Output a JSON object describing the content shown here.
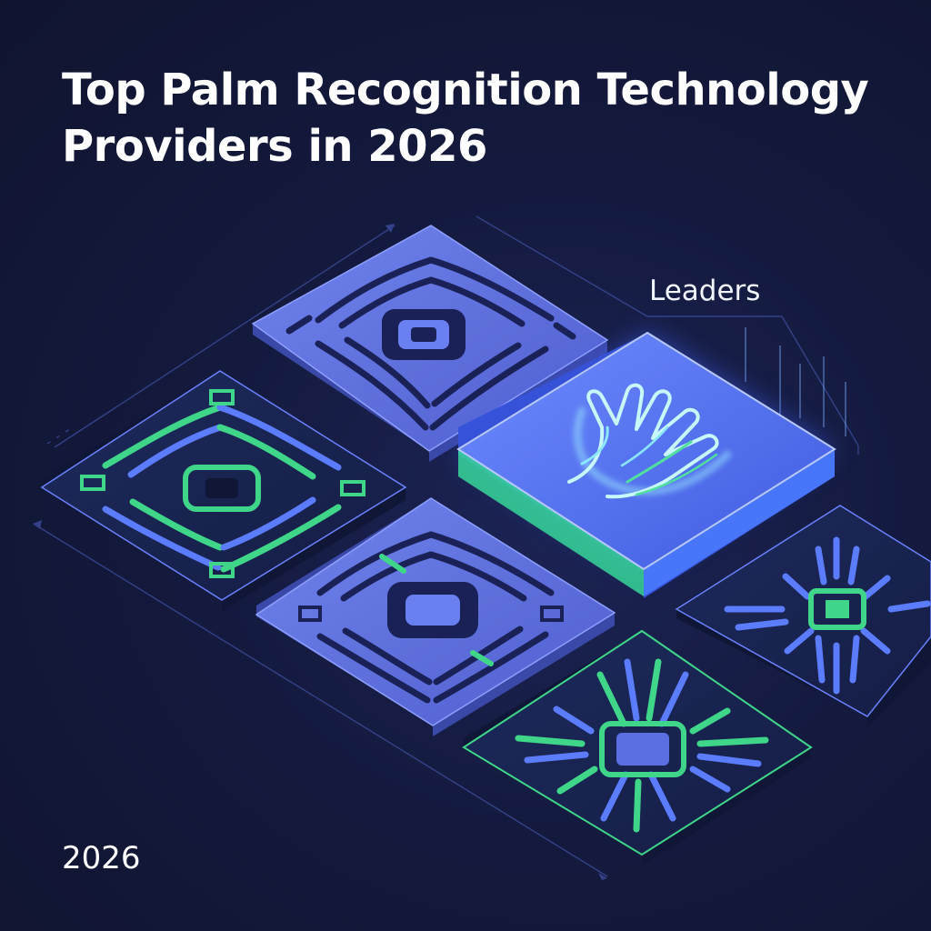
{
  "title": {
    "line1": "Top Palm Recognition Technology",
    "line2": "Providers in 2026"
  },
  "label": "Leaders",
  "footer_year": "2026",
  "colors": {
    "background": "#13183a",
    "tile_blue": "#5c6fe0",
    "tile_dark": "#18234f",
    "accent_green": "#3fd68a",
    "glow": "#7aa2ff"
  },
  "icons": [
    "hand-icon"
  ]
}
